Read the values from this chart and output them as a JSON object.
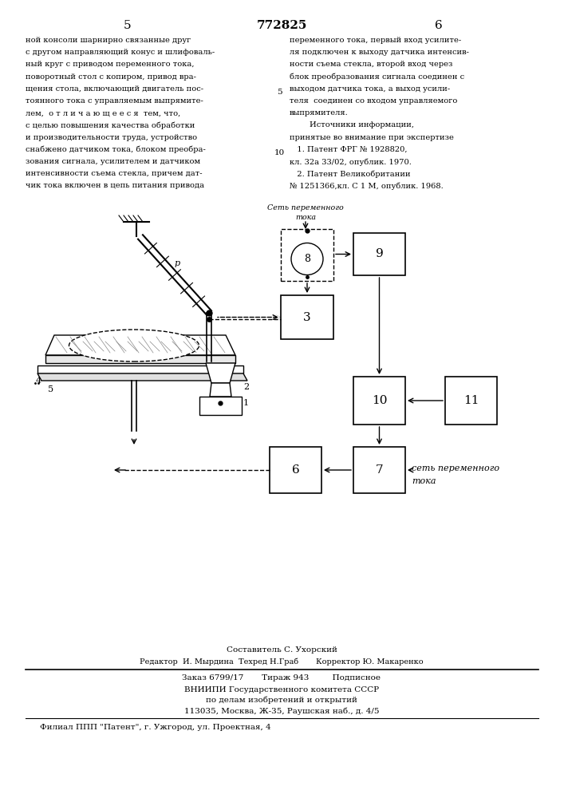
{
  "page_number_left": "5",
  "patent_number": "772825",
  "page_number_right": "6",
  "text_left_col": [
    "ной консоли шарнирно связанные друг",
    "с другом направляющий конус и шлифоваль-",
    "ный круг с приводом переменного тока,",
    "поворотный стол с копиром, привод вра-",
    "щения стола, включающий двигатель пос-",
    "тоянного тока с управляемым выпрямите-",
    "лем,  о т л и ч а ю щ е е с я  тем, что,",
    "с целью повышения качества обработки",
    "и производительности труда, устройство",
    "снабжено датчиком тока, блоком преобра-",
    "зования сигнала, усилителем и датчиком",
    "интенсивности съема стекла, причем дат-",
    "чик тока включен в цепь питания привода"
  ],
  "text_right_col": [
    "переменного тока, первый вход усилите-",
    "ля подключен к выходу датчика интенсив-",
    "ности съема стекла, второй вход через",
    "блок преобразования сигнала соединен с",
    "выходом датчика тока, а выход усили-",
    "теля  соединен со входом управляемого",
    "выпрямителя.",
    "        Источники информации,",
    "принятые во внимание при экспертизе",
    "   1. Патент ФРГ № 1928820,",
    "кл. 32а 33/02, опублик. 1970.",
    "   2. Патент Великобритании",
    "№ 1251366,кл. С 1 М, опублик. 1968."
  ],
  "footer_line1": "Составитель С. Ухорский",
  "footer_line2": "Редактор  И. Мырдина  Техред Н.Граб       Корректор Ю. Макаренко",
  "footer_line3": "Заказ 6799/17       Тираж 943         Подписное",
  "footer_line4": "ВНИИПИ Государственного комитета СССР",
  "footer_line5": "по делам изобретений и открытий",
  "footer_line6": "113035, Москва, Ж-35, Раушская наб., д. 4/5",
  "footer_line7": "Филиал ППП \"Патент\", г. Ужгород, ул. Проектная, 4",
  "bg_color": "#ffffff",
  "text_color": "#000000",
  "diagram_color": "#000000"
}
